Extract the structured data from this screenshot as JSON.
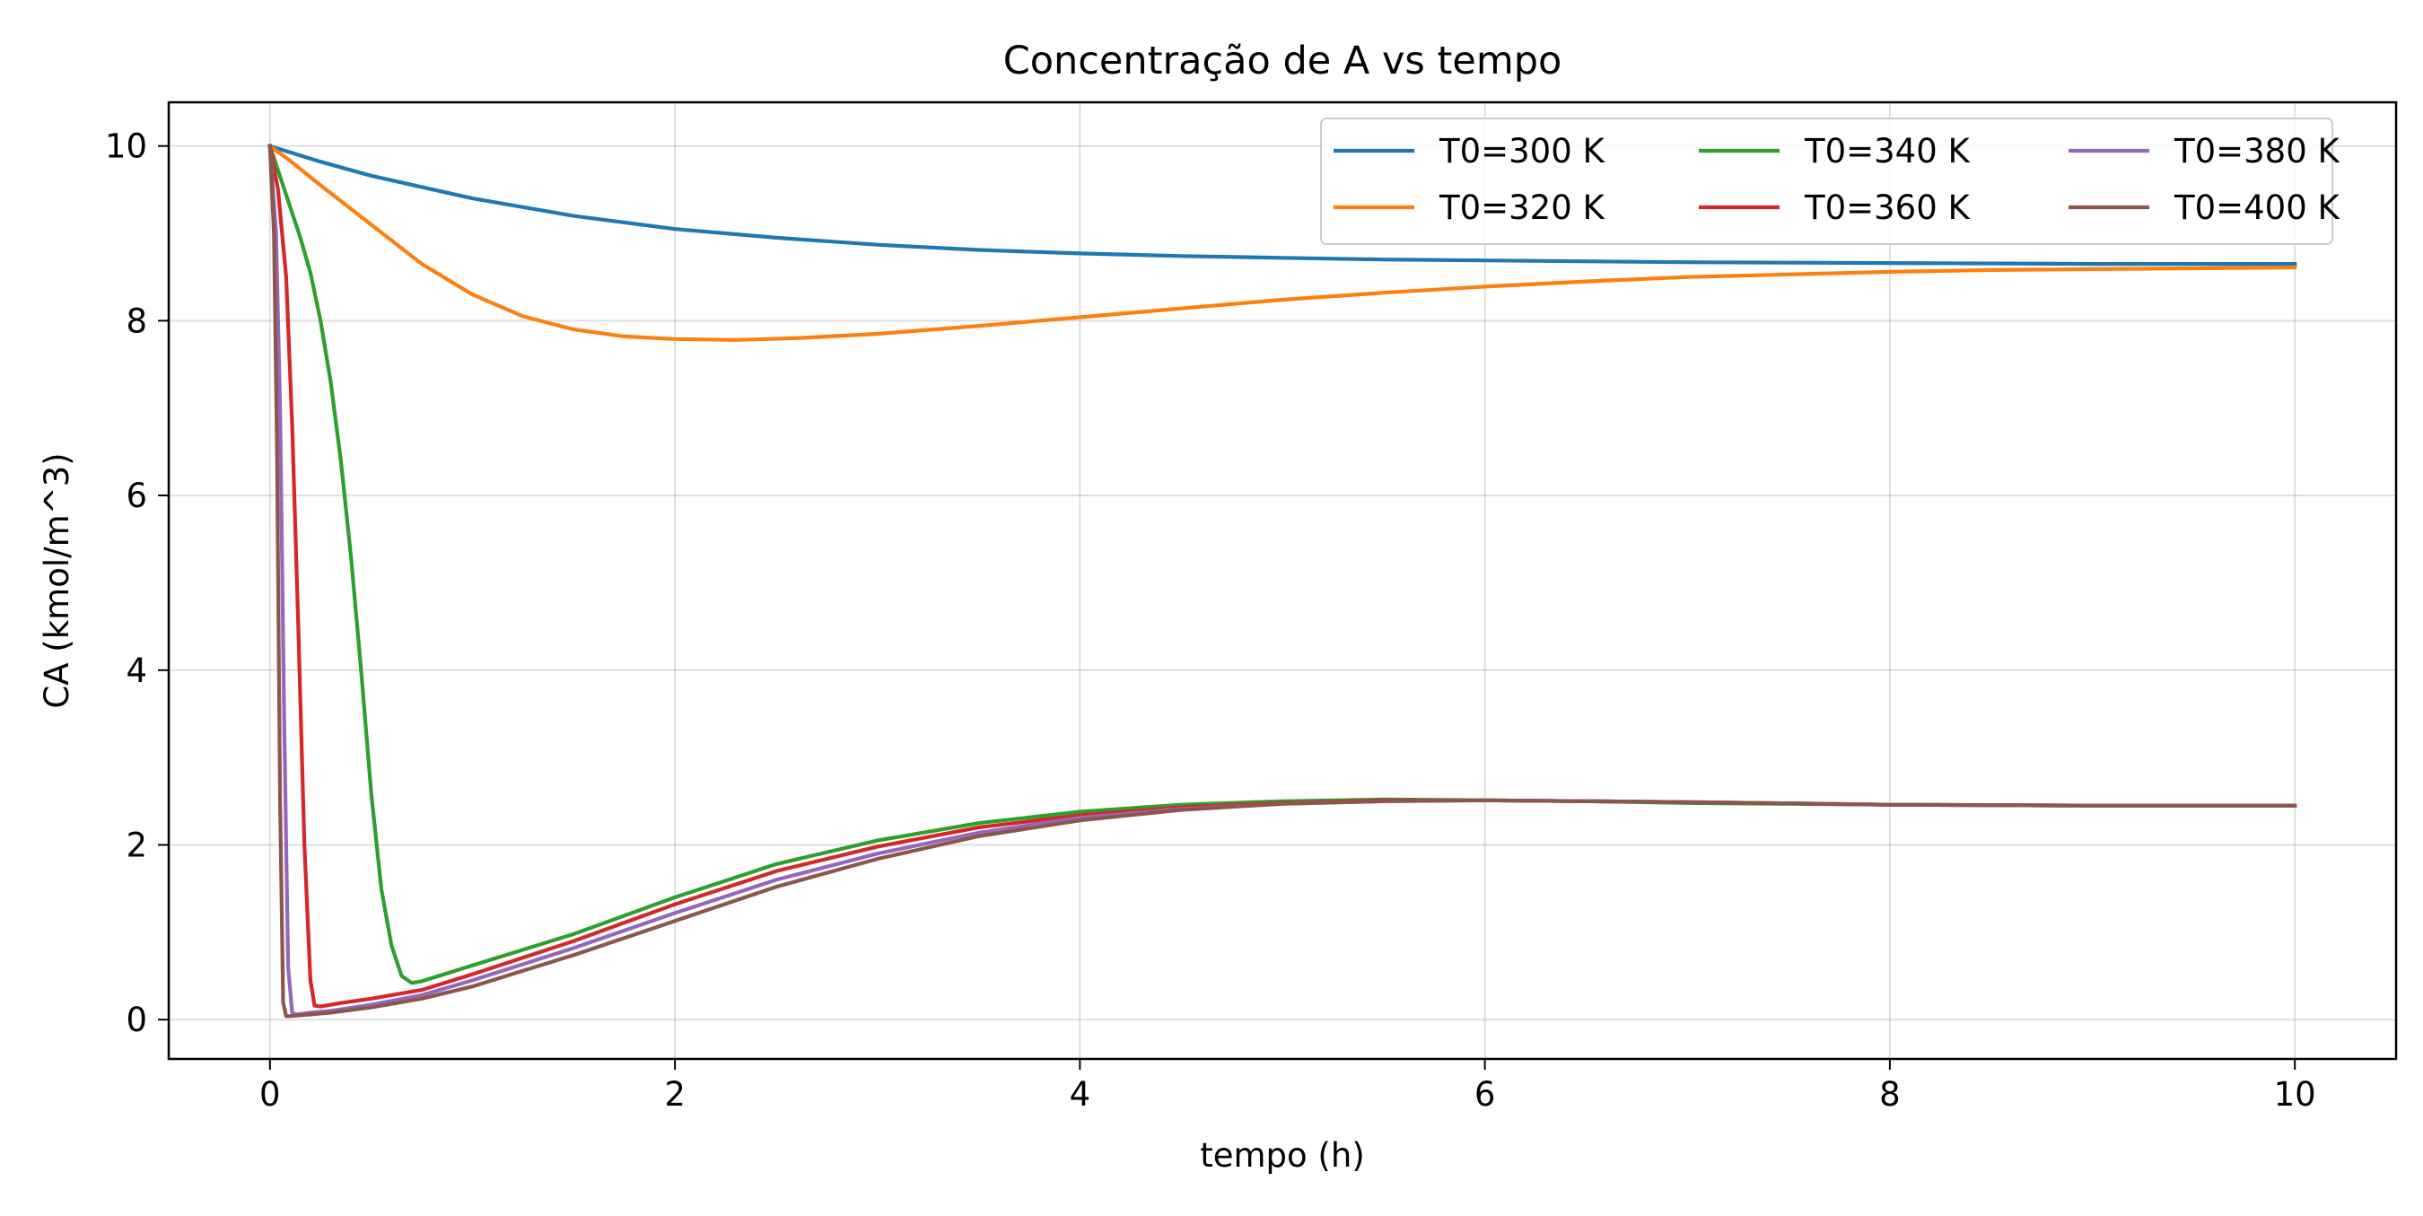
{
  "chart_data": {
    "type": "line",
    "title": "Concentração de A vs tempo",
    "xlabel": "tempo (h)",
    "ylabel": "CA (kmol/m^3)",
    "xlim": [
      -0.5,
      10.5
    ],
    "ylim": [
      -0.45,
      10.5
    ],
    "xticks": [
      0,
      2,
      4,
      6,
      8,
      10
    ],
    "yticks": [
      0,
      2,
      4,
      6,
      8,
      10
    ],
    "grid": true,
    "legend": {
      "position": "top-right",
      "columns": 3
    },
    "series": [
      {
        "name": "T0=300 K",
        "color": "#1f77b4",
        "x": [
          0,
          0.25,
          0.5,
          1,
          1.5,
          2,
          2.5,
          3,
          3.5,
          4,
          4.5,
          5,
          5.5,
          6,
          7,
          8,
          9,
          10
        ],
        "y": [
          10,
          9.82,
          9.66,
          9.4,
          9.2,
          9.05,
          8.95,
          8.87,
          8.81,
          8.77,
          8.74,
          8.72,
          8.7,
          8.69,
          8.67,
          8.66,
          8.65,
          8.65
        ]
      },
      {
        "name": "T0=320 K",
        "color": "#ff7f0e",
        "x": [
          0,
          0.1,
          0.25,
          0.5,
          0.75,
          1,
          1.25,
          1.5,
          1.75,
          2,
          2.3,
          2.6,
          3,
          3.5,
          4,
          4.5,
          5,
          5.5,
          6,
          6.5,
          7,
          7.5,
          8,
          8.5,
          9,
          9.5,
          10
        ],
        "y": [
          10,
          9.83,
          9.55,
          9.1,
          8.65,
          8.3,
          8.05,
          7.9,
          7.82,
          7.79,
          7.78,
          7.8,
          7.85,
          7.94,
          8.04,
          8.14,
          8.24,
          8.32,
          8.39,
          8.45,
          8.5,
          8.53,
          8.56,
          8.58,
          8.59,
          8.6,
          8.61
        ]
      },
      {
        "name": "T0=340 K",
        "color": "#2ca02c",
        "x": [
          0,
          0.05,
          0.1,
          0.15,
          0.2,
          0.25,
          0.3,
          0.35,
          0.4,
          0.45,
          0.5,
          0.55,
          0.6,
          0.65,
          0.7,
          0.75,
          1,
          1.5,
          2,
          2.5,
          3,
          3.5,
          4,
          4.5,
          5,
          5.5,
          6,
          6.5,
          7,
          8,
          9,
          10
        ],
        "y": [
          10,
          9.65,
          9.3,
          8.95,
          8.55,
          8.0,
          7.3,
          6.4,
          5.3,
          4.0,
          2.6,
          1.5,
          0.85,
          0.5,
          0.42,
          0.44,
          0.62,
          0.98,
          1.4,
          1.78,
          2.05,
          2.25,
          2.38,
          2.46,
          2.5,
          2.52,
          2.51,
          2.5,
          2.48,
          2.46,
          2.45,
          2.45
        ]
      },
      {
        "name": "T0=360 K",
        "color": "#d62728",
        "x": [
          0,
          0.04,
          0.08,
          0.11,
          0.14,
          0.17,
          0.2,
          0.22,
          0.25,
          0.35,
          0.5,
          0.75,
          1,
          1.5,
          2,
          2.5,
          3,
          3.5,
          4,
          4.5,
          5,
          5.5,
          6,
          6.5,
          7,
          8,
          9,
          10
        ],
        "y": [
          10,
          9.5,
          8.5,
          6.8,
          4.5,
          2.0,
          0.45,
          0.16,
          0.15,
          0.19,
          0.24,
          0.34,
          0.52,
          0.9,
          1.32,
          1.7,
          1.98,
          2.2,
          2.34,
          2.43,
          2.48,
          2.51,
          2.51,
          2.5,
          2.49,
          2.46,
          2.45,
          2.45
        ]
      },
      {
        "name": "T0=380 K",
        "color": "#9467bd",
        "x": [
          0,
          0.03,
          0.05,
          0.07,
          0.09,
          0.11,
          0.13,
          0.2,
          0.3,
          0.5,
          0.75,
          1,
          1.5,
          2,
          2.5,
          3,
          3.5,
          4,
          4.5,
          5,
          5.5,
          6,
          6.5,
          7,
          8,
          9,
          10
        ],
        "y": [
          10,
          9.0,
          7.0,
          3.5,
          0.6,
          0.08,
          0.06,
          0.08,
          0.1,
          0.17,
          0.28,
          0.45,
          0.82,
          1.22,
          1.6,
          1.9,
          2.14,
          2.31,
          2.41,
          2.47,
          2.5,
          2.51,
          2.5,
          2.49,
          2.46,
          2.45,
          2.45
        ]
      },
      {
        "name": "T0=400 K",
        "color": "#8c564b",
        "x": [
          0,
          0.02,
          0.035,
          0.05,
          0.065,
          0.08,
          0.1,
          0.2,
          0.3,
          0.5,
          0.75,
          1,
          1.5,
          2,
          2.5,
          3,
          3.5,
          4,
          4.5,
          5,
          5.5,
          6,
          6.5,
          7,
          8,
          9,
          10
        ],
        "y": [
          10,
          9.0,
          6.5,
          2.5,
          0.2,
          0.04,
          0.04,
          0.06,
          0.08,
          0.14,
          0.24,
          0.38,
          0.74,
          1.13,
          1.52,
          1.84,
          2.1,
          2.28,
          2.4,
          2.47,
          2.5,
          2.51,
          2.5,
          2.49,
          2.46,
          2.45,
          2.45
        ]
      }
    ]
  }
}
